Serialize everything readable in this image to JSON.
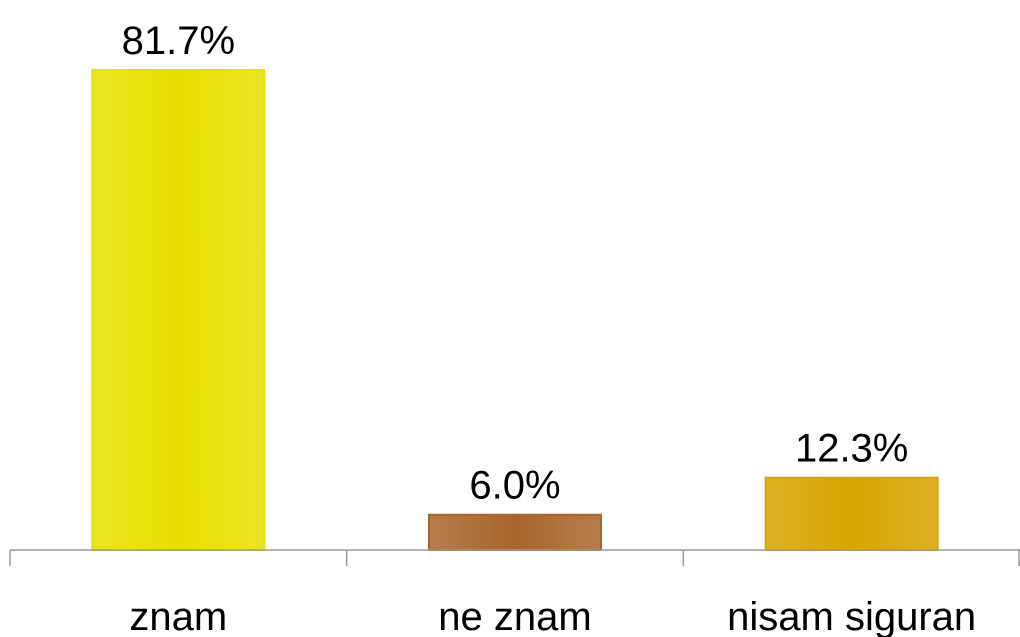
{
  "chart_data": {
    "type": "bar",
    "categories": [
      "znam",
      "ne znam",
      "nisam siguran"
    ],
    "values": [
      81.7,
      6.0,
      12.3
    ],
    "value_labels": [
      "81.7%",
      "6.0%",
      "12.3%"
    ],
    "colors": [
      "#e8e000",
      "#a8662c",
      "#d8a400"
    ]
  }
}
